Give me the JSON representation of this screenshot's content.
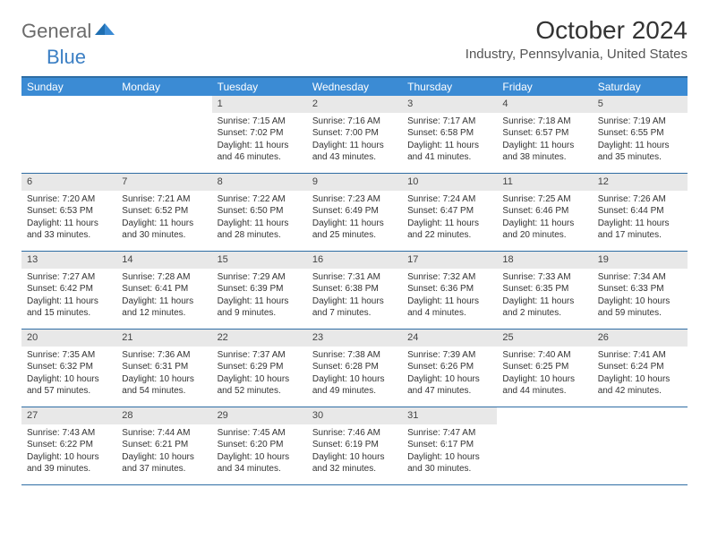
{
  "logo": {
    "text1": "General",
    "text2": "Blue"
  },
  "title": "October 2024",
  "location": "Industry, Pennsylvania, United States",
  "colors": {
    "header_bg": "#3b8bd4",
    "border": "#2e6da4",
    "daynum_bg": "#e8e8e8",
    "logo_gray": "#6b6b6b",
    "logo_blue": "#3b7fc4"
  },
  "day_headers": [
    "Sunday",
    "Monday",
    "Tuesday",
    "Wednesday",
    "Thursday",
    "Friday",
    "Saturday"
  ],
  "weeks": [
    [
      null,
      null,
      {
        "n": "1",
        "sr": "7:15 AM",
        "ss": "7:02 PM",
        "dl": "11 hours and 46 minutes."
      },
      {
        "n": "2",
        "sr": "7:16 AM",
        "ss": "7:00 PM",
        "dl": "11 hours and 43 minutes."
      },
      {
        "n": "3",
        "sr": "7:17 AM",
        "ss": "6:58 PM",
        "dl": "11 hours and 41 minutes."
      },
      {
        "n": "4",
        "sr": "7:18 AM",
        "ss": "6:57 PM",
        "dl": "11 hours and 38 minutes."
      },
      {
        "n": "5",
        "sr": "7:19 AM",
        "ss": "6:55 PM",
        "dl": "11 hours and 35 minutes."
      }
    ],
    [
      {
        "n": "6",
        "sr": "7:20 AM",
        "ss": "6:53 PM",
        "dl": "11 hours and 33 minutes."
      },
      {
        "n": "7",
        "sr": "7:21 AM",
        "ss": "6:52 PM",
        "dl": "11 hours and 30 minutes."
      },
      {
        "n": "8",
        "sr": "7:22 AM",
        "ss": "6:50 PM",
        "dl": "11 hours and 28 minutes."
      },
      {
        "n": "9",
        "sr": "7:23 AM",
        "ss": "6:49 PM",
        "dl": "11 hours and 25 minutes."
      },
      {
        "n": "10",
        "sr": "7:24 AM",
        "ss": "6:47 PM",
        "dl": "11 hours and 22 minutes."
      },
      {
        "n": "11",
        "sr": "7:25 AM",
        "ss": "6:46 PM",
        "dl": "11 hours and 20 minutes."
      },
      {
        "n": "12",
        "sr": "7:26 AM",
        "ss": "6:44 PM",
        "dl": "11 hours and 17 minutes."
      }
    ],
    [
      {
        "n": "13",
        "sr": "7:27 AM",
        "ss": "6:42 PM",
        "dl": "11 hours and 15 minutes."
      },
      {
        "n": "14",
        "sr": "7:28 AM",
        "ss": "6:41 PM",
        "dl": "11 hours and 12 minutes."
      },
      {
        "n": "15",
        "sr": "7:29 AM",
        "ss": "6:39 PM",
        "dl": "11 hours and 9 minutes."
      },
      {
        "n": "16",
        "sr": "7:31 AM",
        "ss": "6:38 PM",
        "dl": "11 hours and 7 minutes."
      },
      {
        "n": "17",
        "sr": "7:32 AM",
        "ss": "6:36 PM",
        "dl": "11 hours and 4 minutes."
      },
      {
        "n": "18",
        "sr": "7:33 AM",
        "ss": "6:35 PM",
        "dl": "11 hours and 2 minutes."
      },
      {
        "n": "19",
        "sr": "7:34 AM",
        "ss": "6:33 PM",
        "dl": "10 hours and 59 minutes."
      }
    ],
    [
      {
        "n": "20",
        "sr": "7:35 AM",
        "ss": "6:32 PM",
        "dl": "10 hours and 57 minutes."
      },
      {
        "n": "21",
        "sr": "7:36 AM",
        "ss": "6:31 PM",
        "dl": "10 hours and 54 minutes."
      },
      {
        "n": "22",
        "sr": "7:37 AM",
        "ss": "6:29 PM",
        "dl": "10 hours and 52 minutes."
      },
      {
        "n": "23",
        "sr": "7:38 AM",
        "ss": "6:28 PM",
        "dl": "10 hours and 49 minutes."
      },
      {
        "n": "24",
        "sr": "7:39 AM",
        "ss": "6:26 PM",
        "dl": "10 hours and 47 minutes."
      },
      {
        "n": "25",
        "sr": "7:40 AM",
        "ss": "6:25 PM",
        "dl": "10 hours and 44 minutes."
      },
      {
        "n": "26",
        "sr": "7:41 AM",
        "ss": "6:24 PM",
        "dl": "10 hours and 42 minutes."
      }
    ],
    [
      {
        "n": "27",
        "sr": "7:43 AM",
        "ss": "6:22 PM",
        "dl": "10 hours and 39 minutes."
      },
      {
        "n": "28",
        "sr": "7:44 AM",
        "ss": "6:21 PM",
        "dl": "10 hours and 37 minutes."
      },
      {
        "n": "29",
        "sr": "7:45 AM",
        "ss": "6:20 PM",
        "dl": "10 hours and 34 minutes."
      },
      {
        "n": "30",
        "sr": "7:46 AM",
        "ss": "6:19 PM",
        "dl": "10 hours and 32 minutes."
      },
      {
        "n": "31",
        "sr": "7:47 AM",
        "ss": "6:17 PM",
        "dl": "10 hours and 30 minutes."
      },
      null,
      null
    ]
  ],
  "labels": {
    "sunrise": "Sunrise:",
    "sunset": "Sunset:",
    "daylight": "Daylight:"
  }
}
